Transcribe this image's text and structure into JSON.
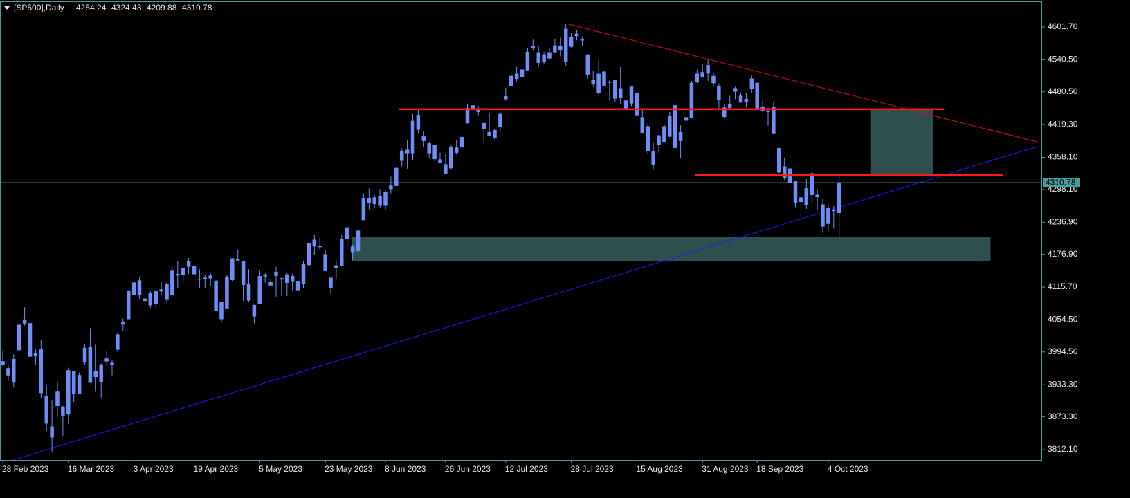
{
  "chart_data": {
    "type": "candlestick",
    "title": "[SP500],Daily",
    "candle_color": "#6e8ef7",
    "categories": [
      "28 Feb 2023",
      null,
      null,
      null,
      null,
      null,
      null,
      null,
      null,
      null,
      null,
      null,
      "16 Mar 2023",
      null,
      null,
      null,
      null,
      null,
      null,
      null,
      null,
      null,
      null,
      null,
      "3 Apr 2023",
      null,
      null,
      null,
      null,
      null,
      null,
      null,
      null,
      null,
      null,
      "19 Apr 2023",
      null,
      null,
      null,
      null,
      null,
      null,
      null,
      null,
      null,
      null,
      null,
      "5 May 2023",
      null,
      null,
      null,
      null,
      null,
      null,
      null,
      null,
      null,
      null,
      null,
      "23 May 2023",
      null,
      null,
      null,
      null,
      null,
      null,
      null,
      null,
      null,
      null,
      "8 Jun 2023",
      null,
      null,
      null,
      null,
      null,
      null,
      null,
      null,
      null,
      null,
      "26 Jun 2023",
      null,
      null,
      null,
      null,
      null,
      null,
      null,
      null,
      null,
      null,
      "12 Jul 2023",
      null,
      null,
      null,
      null,
      null,
      null,
      null,
      null,
      null,
      null,
      null,
      "28 Jul 2023",
      null,
      null,
      null,
      null,
      null,
      null,
      null,
      null,
      null,
      null,
      null,
      "15 Aug 2023",
      null,
      null,
      null,
      null,
      null,
      null,
      null,
      null,
      null,
      null,
      null,
      "31 Aug 2023",
      null,
      null,
      null,
      null,
      null,
      null,
      null,
      null,
      null,
      "18 Sep 2023",
      null,
      null,
      null,
      null,
      null,
      null,
      null,
      null,
      null,
      null,
      null,
      null,
      "4 Oct 2023",
      null,
      null
    ],
    "ohlc": [
      [
        3977,
        3997,
        3968,
        3970
      ],
      [
        3964,
        3971,
        3940,
        3951
      ],
      [
        3938,
        3990,
        3928,
        3981
      ],
      [
        3998,
        4048,
        3995,
        4045
      ],
      [
        4055,
        4078,
        4044,
        4048
      ],
      [
        4048,
        4050,
        3980,
        3986
      ],
      [
        3987,
        4000,
        3970,
        3992
      ],
      [
        3999,
        4017,
        3908,
        3918
      ],
      [
        3912,
        3934,
        3847,
        3861
      ],
      [
        3835,
        3905,
        3808,
        3855
      ],
      [
        3894,
        3938,
        3873,
        3920
      ],
      [
        3876,
        3894,
        3838,
        3892
      ],
      [
        3878,
        3965,
        3860,
        3960
      ],
      [
        3959,
        3959,
        3901,
        3917
      ],
      [
        3917,
        3956,
        3916,
        3951
      ],
      [
        3975,
        4010,
        3971,
        4002
      ],
      [
        4003,
        4039,
        3937,
        3937
      ],
      [
        3959,
        4008,
        3920,
        3948
      ],
      [
        3939,
        3973,
        3909,
        3971
      ],
      [
        3982,
        3997,
        3969,
        3977
      ],
      [
        3974,
        3979,
        3951,
        3971
      ],
      [
        3999,
        4031,
        3995,
        4027
      ],
      [
        4046,
        4057,
        4033,
        4051
      ],
      [
        4056,
        4110,
        4056,
        4109
      ],
      [
        4102,
        4128,
        4101,
        4124
      ],
      [
        4128,
        4134,
        4093,
        4101
      ],
      [
        4094,
        4099,
        4072,
        4090
      ],
      [
        4082,
        4108,
        4076,
        4105
      ],
      [
        4085,
        4110,
        4075,
        4109
      ],
      [
        4111,
        4125,
        4102,
        4108
      ],
      [
        4122,
        4125,
        4087,
        4092
      ],
      [
        4101,
        4151,
        4099,
        4146
      ],
      [
        4140,
        4164,
        4114,
        4138
      ],
      [
        4138,
        4152,
        4124,
        4151
      ],
      [
        4164,
        4170,
        4140,
        4154
      ],
      [
        4140,
        4163,
        4132,
        4155
      ],
      [
        4131,
        4149,
        4114,
        4130
      ],
      [
        4132,
        4138,
        4113,
        4133
      ],
      [
        4132,
        4143,
        4118,
        4137
      ],
      [
        4127,
        4129,
        4071,
        4071
      ],
      [
        4087,
        4089,
        4050,
        4056
      ],
      [
        4075,
        4138,
        4075,
        4135
      ],
      [
        4129,
        4170,
        4127,
        4169
      ],
      [
        4166,
        4186,
        4164,
        4167
      ],
      [
        4164,
        4164,
        4090,
        4120
      ],
      [
        4122,
        4149,
        4088,
        4091
      ],
      [
        4082,
        4083,
        4048,
        4061
      ],
      [
        4084,
        4148,
        4084,
        4136
      ],
      [
        4136,
        4143,
        4124,
        4138
      ],
      [
        4125,
        4131,
        4117,
        4119
      ],
      [
        4144,
        4154,
        4098,
        4137
      ],
      [
        4132,
        4133,
        4099,
        4130
      ],
      [
        4139,
        4143,
        4099,
        4124
      ],
      [
        4127,
        4141,
        4110,
        4136
      ],
      [
        4127,
        4136,
        4109,
        4110
      ],
      [
        4122,
        4164,
        4114,
        4159
      ],
      [
        4157,
        4202,
        4154,
        4198
      ],
      [
        4204,
        4213,
        4176,
        4192
      ],
      [
        4191,
        4209,
        4186,
        4192
      ],
      [
        4177,
        4186,
        4145,
        4146
      ],
      [
        4133,
        4134,
        4103,
        4115
      ],
      [
        4156,
        4165,
        4130,
        4151
      ],
      [
        4156,
        4213,
        4155,
        4205
      ],
      [
        4227,
        4231,
        4192,
        4206
      ],
      [
        4191,
        4195,
        4166,
        4180
      ],
      [
        4183,
        4232,
        4171,
        4221
      ],
      [
        4241,
        4291,
        4241,
        4282
      ],
      [
        4282,
        4300,
        4261,
        4273
      ],
      [
        4271,
        4288,
        4263,
        4283
      ],
      [
        4285,
        4299,
        4264,
        4268
      ],
      [
        4268,
        4298,
        4261,
        4293
      ],
      [
        4305,
        4322,
        4291,
        4299
      ],
      [
        4305,
        4340,
        4304,
        4338
      ],
      [
        4352,
        4375,
        4341,
        4369
      ],
      [
        4366,
        4391,
        4337,
        4372
      ],
      [
        4366,
        4439,
        4353,
        4426
      ],
      [
        4437,
        4448,
        4402,
        4410
      ],
      [
        4397,
        4407,
        4377,
        4389
      ],
      [
        4384,
        4387,
        4356,
        4366
      ],
      [
        4355,
        4382,
        4351,
        4381
      ],
      [
        4354,
        4367,
        4347,
        4348
      ],
      [
        4345,
        4364,
        4328,
        4328
      ],
      [
        4338,
        4380,
        4335,
        4378
      ],
      [
        4367,
        4391,
        4363,
        4376
      ],
      [
        4377,
        4400,
        4374,
        4396
      ],
      [
        4422,
        4458,
        4422,
        4450
      ],
      [
        4450,
        4456,
        4442,
        4455
      ],
      [
        4443,
        4454,
        4437,
        4447
      ],
      [
        4422,
        4422,
        4385,
        4411
      ],
      [
        4405,
        4440,
        4398,
        4399
      ],
      [
        4395,
        4412,
        4389,
        4409
      ],
      [
        4416,
        4443,
        4407,
        4439
      ],
      [
        4467,
        4488,
        4464,
        4472
      ],
      [
        4492,
        4517,
        4490,
        4510
      ],
      [
        4514,
        4527,
        4500,
        4505
      ],
      [
        4508,
        4532,
        4505,
        4522
      ],
      [
        4521,
        4562,
        4519,
        4555
      ],
      [
        4563,
        4578,
        4557,
        4565
      ],
      [
        4554,
        4565,
        4527,
        4535
      ],
      [
        4550,
        4555,
        4532,
        4536
      ],
      [
        4543,
        4563,
        4541,
        4554
      ],
      [
        4555,
        4580,
        4553,
        4567
      ],
      [
        4558,
        4582,
        4547,
        4566
      ],
      [
        4598,
        4607,
        4528,
        4537
      ],
      [
        4565,
        4590,
        4563,
        4582
      ],
      [
        4585,
        4595,
        4577,
        4589
      ],
      [
        4578,
        4584,
        4567,
        4577
      ],
      [
        4550,
        4551,
        4505,
        4513
      ],
      [
        4495,
        4520,
        4490,
        4502
      ],
      [
        4514,
        4540,
        4474,
        4478
      ],
      [
        4491,
        4520,
        4491,
        4518
      ],
      [
        4498,
        4503,
        4464,
        4499
      ],
      [
        4502,
        4503,
        4461,
        4468
      ],
      [
        4487,
        4527,
        4458,
        4469
      ],
      [
        4450,
        4476,
        4443,
        4464
      ],
      [
        4459,
        4490,
        4454,
        4490
      ],
      [
        4478,
        4478,
        4432,
        4437
      ],
      [
        4433,
        4450,
        4403,
        4404
      ],
      [
        4416,
        4421,
        4364,
        4370
      ],
      [
        4345,
        4385,
        4335,
        4369
      ],
      [
        4381,
        4400,
        4367,
        4399
      ],
      [
        4416,
        4419,
        4386,
        4387
      ],
      [
        4397,
        4443,
        4396,
        4436
      ],
      [
        4455,
        4458,
        4376,
        4376
      ],
      [
        4389,
        4418,
        4357,
        4405
      ],
      [
        4427,
        4440,
        4414,
        4433
      ],
      [
        4432,
        4501,
        4431,
        4497
      ],
      [
        4500,
        4522,
        4497,
        4514
      ],
      [
        4517,
        4532,
        4507,
        4508
      ],
      [
        4530,
        4541,
        4501,
        4515
      ],
      [
        4510,
        4515,
        4490,
        4497
      ],
      [
        4491,
        4496,
        4449,
        4465
      ],
      [
        4434,
        4457,
        4431,
        4451
      ],
      [
        4451,
        4473,
        4448,
        4457
      ],
      [
        4481,
        4490,
        4467,
        4487
      ],
      [
        4473,
        4479,
        4460,
        4461
      ],
      [
        4462,
        4479,
        4452,
        4467
      ],
      [
        4487,
        4511,
        4479,
        4505
      ],
      [
        4497,
        4497,
        4447,
        4450
      ],
      [
        4445,
        4467,
        4443,
        4453
      ],
      [
        4445,
        4451,
        4417,
        4443
      ],
      [
        4452,
        4461,
        4402,
        4402
      ],
      [
        4375,
        4376,
        4329,
        4330
      ],
      [
        4341,
        4358,
        4316,
        4320
      ],
      [
        4311,
        4339,
        4303,
        4337
      ],
      [
        4313,
        4314,
        4265,
        4274
      ],
      [
        4283,
        4292,
        4239,
        4275
      ],
      [
        4269,
        4318,
        4262,
        4300
      ],
      [
        4328,
        4333,
        4275,
        4288
      ],
      [
        4284,
        4300,
        4260,
        4288
      ],
      [
        4270,
        4281,
        4217,
        4229
      ],
      [
        4234,
        4268,
        4220,
        4263
      ],
      [
        4260,
        4267,
        4225,
        4258
      ],
      [
        4254.24,
        4324.43,
        4209.88,
        4310.78
      ]
    ],
    "ylim": [
      3792.7,
      4648.2
    ],
    "yticks": [
      {
        "value": 4601.7,
        "label": "4601.70"
      },
      {
        "value": 4540.5,
        "label": "4540.50"
      },
      {
        "value": 4480.5,
        "label": "4480.50"
      },
      {
        "value": 4419.3,
        "label": "4419.30"
      },
      {
        "value": 4358.1,
        "label": "4358.10"
      },
      {
        "value": 4298.1,
        "label": "4298.10"
      },
      {
        "value": 4236.9,
        "label": "4236.90"
      },
      {
        "value": 4176.9,
        "label": "4176.90"
      },
      {
        "value": 4115.7,
        "label": "4115.70"
      },
      {
        "value": 4054.5,
        "label": "4054.50"
      },
      {
        "value": 3994.5,
        "label": "3994.50"
      },
      {
        "value": 3933.3,
        "label": "3933.30"
      },
      {
        "value": 3873.3,
        "label": "3873.30"
      },
      {
        "value": 3812.1,
        "label": "3812.10"
      }
    ],
    "zones": [
      {
        "color": "#2f4f4f",
        "x": [
          63.9,
          180.7
        ],
        "y": [
          4164.9,
          4210.1
        ]
      },
      {
        "color": "#2f4f4f",
        "x": [
          158.7,
          170.2
        ],
        "y": [
          4326.4,
          4448
        ]
      }
    ],
    "hlines": [
      {
        "color": "#ff1a1a",
        "y": 4448,
        "x": [
          72.4,
          172.2
        ]
      },
      {
        "color": "#ff1a1a",
        "y": 4325,
        "x": [
          126.6,
          182.9
        ]
      }
    ],
    "trendlines": [
      {
        "color": "#d01010",
        "x": [
          103.5,
          189.2
        ],
        "y": [
          4606.9,
          4387.2
        ]
      },
      {
        "color": "#1a1aff",
        "x": [
          1.9,
          189.2
        ],
        "y": [
          3792.7,
          4378.1
        ]
      }
    ]
  }
}
